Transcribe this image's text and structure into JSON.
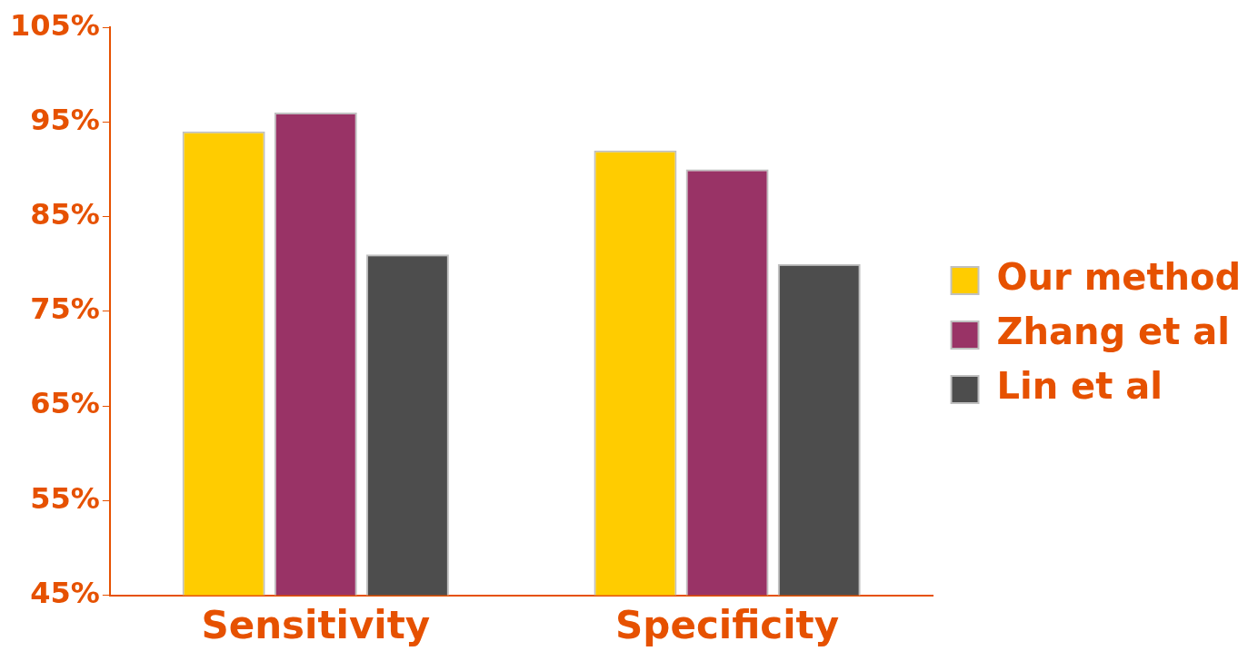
{
  "chart_data": {
    "type": "bar",
    "categories": [
      "Sensitivity",
      "Specificity"
    ],
    "series": [
      {
        "name": "Our method",
        "color": "#ffcc00",
        "values": [
          94,
          92
        ]
      },
      {
        "name": "Zhang et al",
        "color": "#993366",
        "values": [
          96,
          90
        ]
      },
      {
        "name": "Lin et al",
        "color": "#4d4d4d",
        "values": [
          81,
          80
        ]
      }
    ],
    "ylim": [
      45,
      105
    ],
    "yticks": [
      {
        "value": 45,
        "label": "45%"
      },
      {
        "value": 55,
        "label": "55%"
      },
      {
        "value": 65,
        "label": "65%"
      },
      {
        "value": 75,
        "label": "75%"
      },
      {
        "value": 85,
        "label": "85%"
      },
      {
        "value": 95,
        "label": "95%"
      },
      {
        "value": 105,
        "label": "105%"
      }
    ],
    "grid": false,
    "legend": "right"
  }
}
